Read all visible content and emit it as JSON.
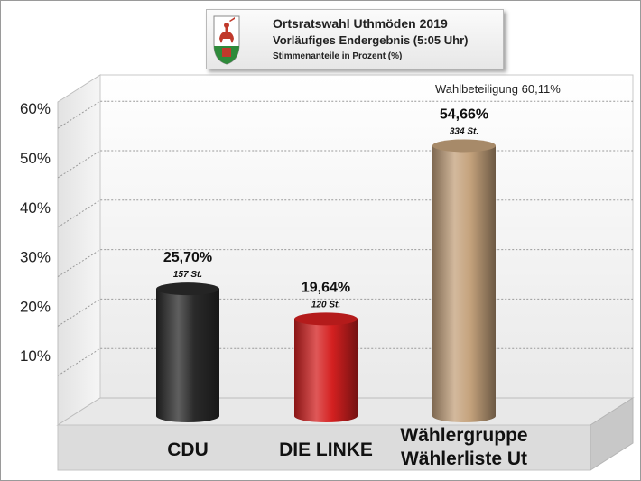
{
  "header": {
    "title": "Ortsratswahl Uthmöden 2019",
    "subtitle": "Vorläufiges Endergebnis (5:05 Uhr)",
    "caption": "Stimmenanteile in Prozent (%)"
  },
  "turnout_label": "Wahlbeteiligung 60,11%",
  "chart_data": {
    "type": "bar",
    "categories": [
      "CDU",
      "DIE LINKE",
      "Wählergruppe Wählerliste Ut"
    ],
    "category_lines": [
      [
        "CDU"
      ],
      [
        "DIE LINKE"
      ],
      [
        "Wählergruppe",
        "Wählerliste Ut"
      ]
    ],
    "values": [
      25.7,
      19.64,
      54.66
    ],
    "value_labels": [
      "25,70%",
      "19,64%",
      "54,66%"
    ],
    "votes_labels": [
      "157 St.",
      "120 St.",
      "334 St."
    ],
    "colors": [
      "#2a2a2a",
      "#d42020",
      "#c4a27c"
    ],
    "yticks": [
      10,
      20,
      30,
      40,
      50,
      60
    ],
    "ytick_labels": [
      "10%",
      "20%",
      "30%",
      "40%",
      "50%",
      "60%"
    ],
    "ylim": [
      0,
      65
    ],
    "grid": true
  }
}
